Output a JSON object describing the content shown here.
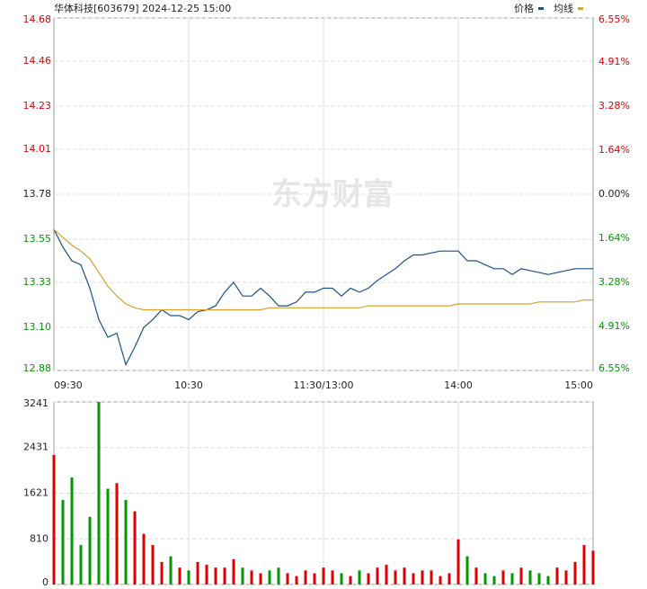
{
  "chart_data": {
    "type": "intraday",
    "title": "华体科技[603679] 2024-12-25 15:00",
    "watermark": "东方财富",
    "categories": [
      "09:30",
      null,
      null,
      null,
      null,
      null,
      null,
      null,
      null,
      null,
      null,
      null,
      null,
      null,
      null,
      "10:30",
      null,
      null,
      null,
      null,
      null,
      null,
      null,
      null,
      null,
      null,
      null,
      null,
      null,
      null,
      "11:30/13:00",
      null,
      null,
      null,
      null,
      null,
      null,
      null,
      null,
      null,
      null,
      null,
      null,
      null,
      null,
      "14:00",
      null,
      null,
      null,
      null,
      null,
      null,
      null,
      null,
      null,
      null,
      null,
      null,
      null,
      null,
      "15:00"
    ],
    "series": [
      {
        "name": "价格",
        "color": "#1a4f8a",
        "values": [
          13.6,
          13.51,
          13.44,
          13.42,
          13.3,
          13.14,
          13.05,
          13.07,
          12.91,
          13.0,
          13.1,
          13.14,
          13.19,
          13.16,
          13.16,
          13.14,
          13.18,
          13.19,
          13.21,
          13.28,
          13.33,
          13.26,
          13.26,
          13.3,
          13.26,
          13.21,
          13.21,
          13.23,
          13.28,
          13.28,
          13.3,
          13.3,
          13.26,
          13.3,
          13.28,
          13.3,
          13.34,
          13.37,
          13.4,
          13.44,
          13.47,
          13.47,
          13.48,
          13.49,
          13.49,
          13.49,
          13.44,
          13.44,
          13.42,
          13.4,
          13.4,
          13.37,
          13.4,
          13.39,
          13.38,
          13.37,
          13.38,
          13.39,
          13.4,
          13.4,
          13.4
        ]
      },
      {
        "name": "均线",
        "color": "#d9a02a",
        "values": [
          13.6,
          13.56,
          13.52,
          13.49,
          13.45,
          13.38,
          13.31,
          13.26,
          13.22,
          13.2,
          13.19,
          13.19,
          13.19,
          13.19,
          13.19,
          13.19,
          13.19,
          13.19,
          13.19,
          13.19,
          13.19,
          13.19,
          13.19,
          13.19,
          13.2,
          13.2,
          13.2,
          13.2,
          13.2,
          13.2,
          13.2,
          13.2,
          13.2,
          13.2,
          13.2,
          13.21,
          13.21,
          13.21,
          13.21,
          13.21,
          13.21,
          13.21,
          13.21,
          13.21,
          13.21,
          13.22,
          13.22,
          13.22,
          13.22,
          13.22,
          13.22,
          13.22,
          13.22,
          13.22,
          13.23,
          13.23,
          13.23,
          13.23,
          13.23,
          13.24,
          13.24
        ]
      }
    ],
    "ylim": [
      12.88,
      14.68
    ],
    "yticks": [
      {
        "value": 12.88,
        "label": "12.88"
      },
      {
        "value": 13.1,
        "label": "13.10"
      },
      {
        "value": 13.33,
        "label": "13.33"
      },
      {
        "value": 13.55,
        "label": "13.55"
      },
      {
        "value": 13.78,
        "label": "13.78"
      },
      {
        "value": 14.01,
        "label": "14.01"
      },
      {
        "value": 14.23,
        "label": "14.23"
      },
      {
        "value": 14.46,
        "label": "14.46"
      },
      {
        "value": 14.68,
        "label": "14.68"
      }
    ],
    "y2lim": [
      -6.55,
      6.55
    ],
    "y2ticks": [
      {
        "value": -6.55,
        "label": "6.55%"
      },
      {
        "value": -4.91,
        "label": "4.91%"
      },
      {
        "value": -3.28,
        "label": "3.28%"
      },
      {
        "value": -1.64,
        "label": "1.64%"
      },
      {
        "value": 0,
        "label": "0.00%"
      },
      {
        "value": 1.64,
        "label": "1.64%"
      },
      {
        "value": 3.28,
        "label": "3.28%"
      },
      {
        "value": 4.91,
        "label": "4.91%"
      },
      {
        "value": 6.55,
        "label": "6.55%"
      }
    ],
    "volume": {
      "values": [
        2300,
        1500,
        1900,
        700,
        1200,
        3241,
        1700,
        1800,
        1500,
        1300,
        900,
        700,
        400,
        500,
        300,
        250,
        400,
        350,
        300,
        300,
        450,
        300,
        250,
        200,
        250,
        300,
        200,
        150,
        250,
        200,
        300,
        250,
        200,
        150,
        250,
        200,
        300,
        350,
        250,
        300,
        200,
        250,
        250,
        150,
        200,
        800,
        500,
        300,
        200,
        150,
        250,
        200,
        300,
        250,
        200,
        150,
        300,
        250,
        400,
        700,
        600
      ],
      "ylim": [
        0,
        3241
      ],
      "yticks": [
        0,
        810,
        1621,
        2431,
        3241
      ]
    },
    "up_color": "#e00000",
    "down_color": "#009900",
    "grid": true
  }
}
